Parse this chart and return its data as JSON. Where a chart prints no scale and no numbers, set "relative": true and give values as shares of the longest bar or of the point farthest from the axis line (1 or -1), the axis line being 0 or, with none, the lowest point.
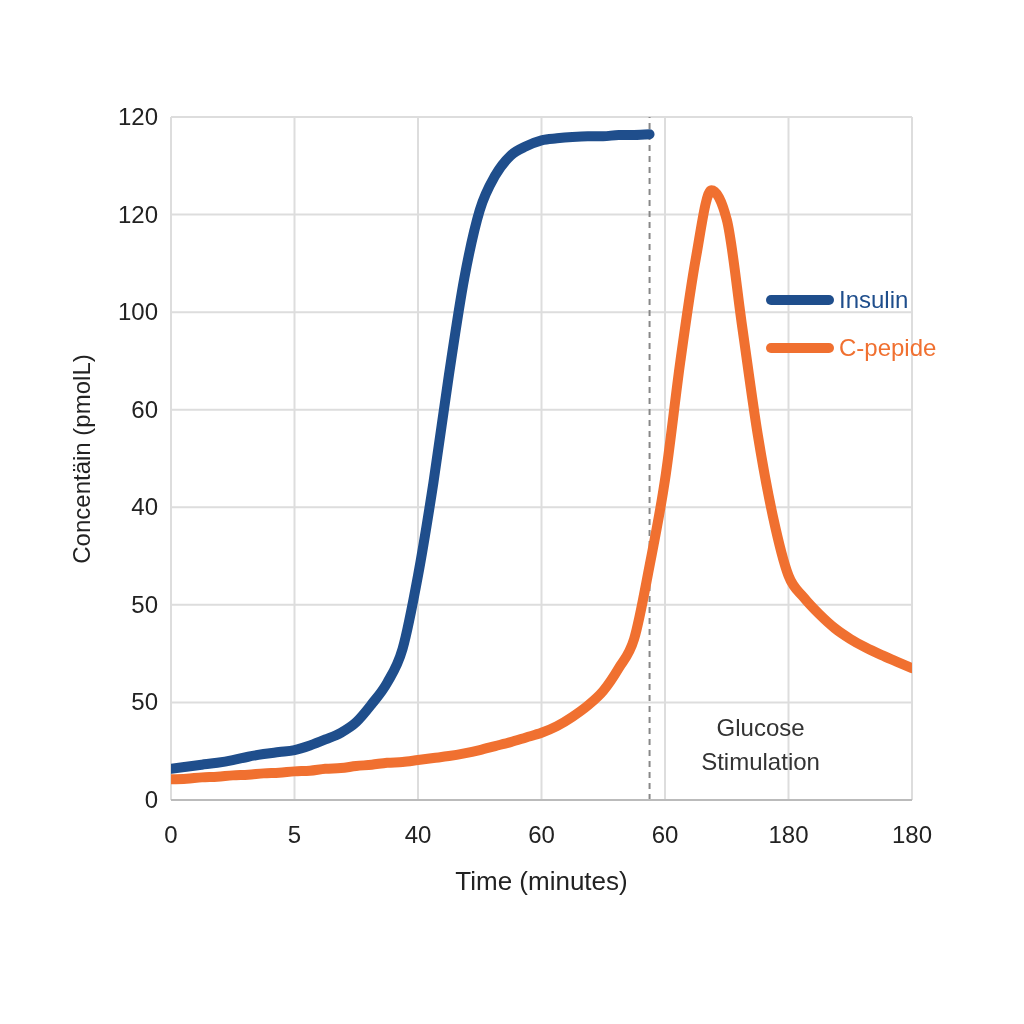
{
  "chart_data": {
    "type": "line",
    "xlabel": "Time (minutes)",
    "ylabel": "Concentäin (pmolL)",
    "relative": true,
    "categories": [
      "0",
      null,
      null,
      null,
      null,
      null,
      null,
      null,
      "5",
      null,
      null,
      null,
      null,
      null,
      null,
      null,
      "40",
      null,
      null,
      null,
      null,
      null,
      null,
      null,
      "60",
      null,
      null,
      null,
      null,
      null,
      null,
      null,
      "60",
      null,
      null,
      null,
      null,
      null,
      null,
      null,
      "180",
      null,
      null,
      null,
      null,
      null,
      null,
      null,
      "180"
    ],
    "annotations": [
      "120",
      "120",
      "100",
      "60",
      "40",
      "50",
      "50",
      "0",
      "Glucose Stimulation"
    ],
    "grid": true,
    "legend": "right",
    "marker": "none",
    "line_style": "solid",
    "series": [
      {
        "name": "Insulin",
        "color": "#1f4e8c",
        "values": [
          0.047,
          0.05,
          0.053,
          0.056,
          0.06,
          0.065,
          0.069,
          0.072,
          0.075,
          0.082,
          0.091,
          0.101,
          0.117,
          0.144,
          0.176,
          0.227,
          0.337,
          0.477,
          0.638,
          0.784,
          0.886,
          0.938,
          0.968,
          0.982,
          0.991,
          0.994,
          0.996,
          0.997,
          0.997,
          0.999,
          0.999,
          1,
          null,
          null,
          null,
          null,
          null,
          null,
          null,
          null,
          null,
          null,
          null,
          null,
          null,
          null,
          null,
          null,
          null
        ]
      },
      {
        "name": "C-pepide",
        "color": "#f07030",
        "values": [
          0.031,
          0.032,
          0.034,
          0.035,
          0.037,
          0.038,
          0.04,
          0.041,
          0.043,
          0.044,
          0.047,
          0.048,
          0.051,
          0.053,
          0.056,
          0.057,
          0.06,
          0.063,
          0.066,
          0.07,
          0.075,
          0.081,
          0.087,
          0.094,
          0.101,
          0.111,
          0.125,
          0.142,
          0.164,
          0.198,
          0.242,
          0.352,
          0.481,
          0.66,
          0.814,
          0.916,
          0.872,
          0.711,
          0.55,
          0.425,
          0.337,
          0.304,
          0.279,
          0.258,
          0.242,
          0.229,
          0.218,
          0.208,
          0.198
        ]
      }
    ]
  }
}
